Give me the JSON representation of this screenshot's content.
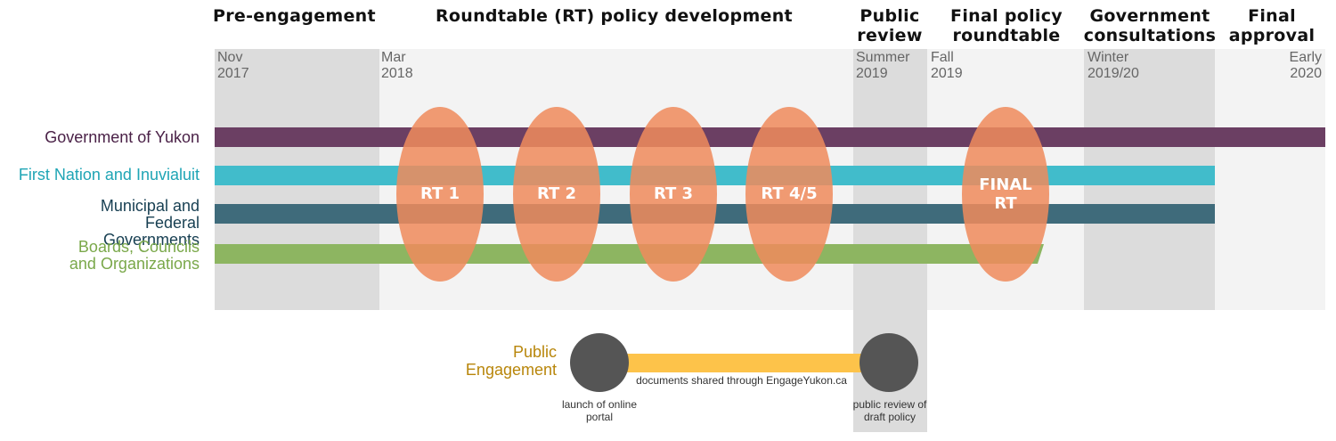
{
  "phases": [
    {
      "name": "Pre-engagement"
    },
    {
      "name": "Roundtable (RT) policy development"
    },
    {
      "name": "Public review"
    },
    {
      "name": "Final policy roundtable"
    },
    {
      "name": "Government consultations"
    },
    {
      "name": "Final approval"
    }
  ],
  "dates": [
    {
      "season": "Nov",
      "year": "2017"
    },
    {
      "season": "Mar",
      "year": "2018"
    },
    {
      "season": "Summer",
      "year": "2019"
    },
    {
      "season": "Fall",
      "year": "2019"
    },
    {
      "season": "Winter",
      "year": "2019/20"
    },
    {
      "season": "Early",
      "year": "2020"
    }
  ],
  "stakeholders": [
    {
      "label": "Government of Yukon",
      "color": "#6b3f63"
    },
    {
      "label": "First Nation and Inuvialuit",
      "color": "#41bccb"
    },
    {
      "label": "Municipal and Federal Governments",
      "color": "#3f6b7b"
    },
    {
      "label": "Boards, Councils and Organizations",
      "color": "#8db561"
    }
  ],
  "roundtables": [
    {
      "label": "RT 1"
    },
    {
      "label": "RT 2"
    },
    {
      "label": "RT 3"
    },
    {
      "label": "RT 4/5"
    },
    {
      "label": "FINAL RT"
    }
  ],
  "roundtable_color": "#ef8a5c",
  "public_engagement": {
    "title": "Public Engagement",
    "start_label": "launch of online portal",
    "end_label": "public review of draft policy",
    "bar_label": "documents shared through EngageYukon.ca",
    "bar_color": "#fdc34a",
    "node_color": "#555555"
  }
}
